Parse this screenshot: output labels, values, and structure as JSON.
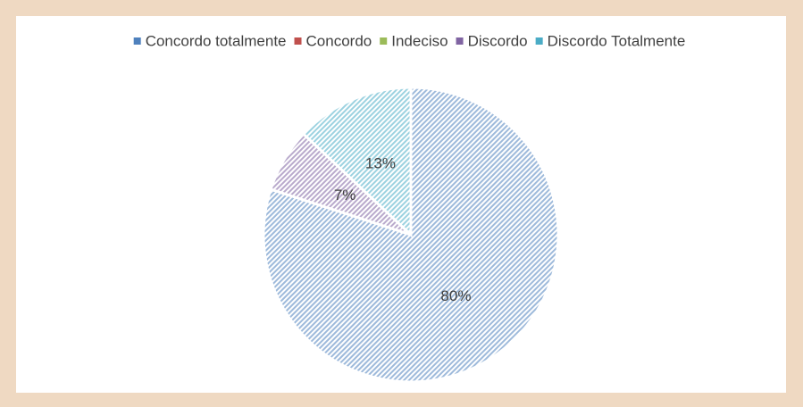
{
  "chart_data": {
    "type": "pie",
    "categories": [
      "Concordo totalmente",
      "Concordo",
      "Indeciso",
      "Discordo",
      "Discordo Totalmente"
    ],
    "values": [
      80,
      0,
      0,
      7,
      13
    ],
    "value_labels": [
      "80%",
      null,
      null,
      "7%",
      "13%"
    ],
    "colors": [
      "#4f81bd",
      "#c0504d",
      "#9bbb59",
      "#8064a2",
      "#4bacc6"
    ],
    "legend": "top"
  }
}
